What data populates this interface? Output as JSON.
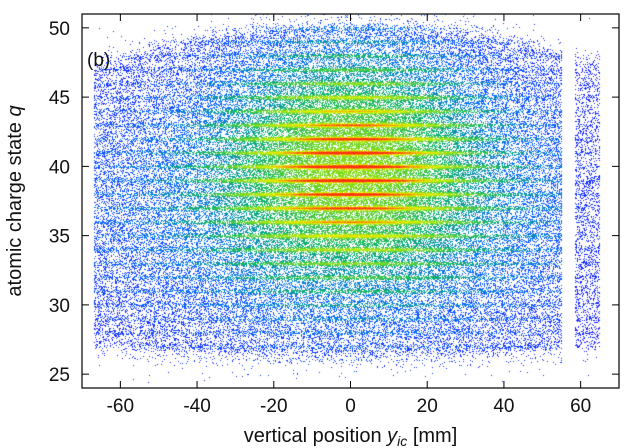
{
  "chart_data": {
    "type": "heatmap",
    "panel_label": "(b)",
    "xlabel": {
      "prefix": "vertical position ",
      "var": "y",
      "sub": "ic",
      "suffix": " [mm]"
    },
    "ylabel": {
      "prefix": "atomic charge state ",
      "var": "q"
    },
    "xlim": [
      -70,
      70
    ],
    "ylim": [
      24,
      51
    ],
    "x_ticks": [
      -60,
      -40,
      -20,
      0,
      20,
      40,
      60
    ],
    "y_ticks": [
      25,
      30,
      35,
      40,
      45,
      50
    ],
    "x_tick_labels": [
      "-60",
      "-40",
      "-20",
      "0",
      "20",
      "40",
      "60"
    ],
    "y_tick_labels": [
      "25",
      "30",
      "35",
      "40",
      "45",
      "50"
    ],
    "grid": false,
    "colormap": [
      "#1a1aff",
      "#0a6bff",
      "#11b36b",
      "#7fdc1f",
      "#e8f000",
      "#ff3010"
    ],
    "distribution": {
      "x_main_range": [
        -67,
        55
      ],
      "x_gap_range": [
        55,
        58.5
      ],
      "x_right_range": [
        58.5,
        65
      ],
      "q_range": [
        26.5,
        50
      ],
      "peak_x": 0,
      "peak_q": 40.5,
      "q_rows_min": 27,
      "q_rows_max": 49
    }
  }
}
